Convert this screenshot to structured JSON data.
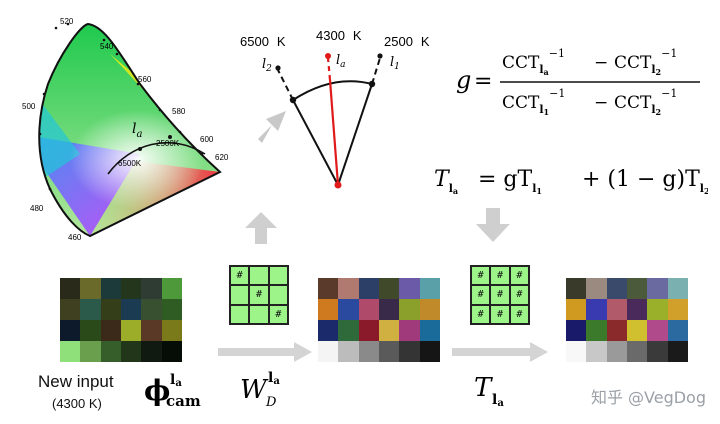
{
  "chromaticity": {
    "wavelength_labels": [
      "520",
      "540",
      "560",
      "580",
      "600",
      "620",
      "500",
      "480",
      "460"
    ],
    "locus_label": "l",
    "locus_label_sub": "a",
    "temp_label_left": "6500K",
    "temp_label_right": "2500K"
  },
  "fan": {
    "left_temp": "6500",
    "left_unit": "K",
    "mid_temp": "4300",
    "mid_unit": "K",
    "right_temp": "2500",
    "right_unit": "K",
    "left_label": "l",
    "left_label_sub": "2",
    "mid_label": "l",
    "mid_label_sub": "a",
    "right_label": "l",
    "right_label_sub": "1"
  },
  "equations": {
    "g_lhs": "g",
    "cct_num_a": "CCT",
    "cct_num_a_sub": "l",
    "cct_num_a_subsub": "a",
    "cct_num_b": "CCT",
    "cct_num_b_sub": "l",
    "cct_num_b_subsub": "2",
    "cct_den_a": "CCT",
    "cct_den_a_sub": "l",
    "cct_den_a_subsub": "1",
    "cct_den_b": "CCT",
    "cct_den_b_sub": "l",
    "cct_den_b_subsub": "2",
    "exponent": "−1",
    "minus": "−",
    "t_equation": "T",
    "t_rhs": "= gT",
    "t_plus": "+ (1 − g)T"
  },
  "bottom": {
    "new_input": "New input",
    "new_input_temp": "(4300 K)",
    "phi": "ϕ",
    "phi_sub": "cam",
    "phi_sup": "l",
    "phi_sup_sub": "a",
    "w_label": "W",
    "w_sub": "D",
    "w_sup": "l",
    "w_sup_sub": "a",
    "t_label": "T",
    "t_sub": "l",
    "t_sub_sub": "a"
  },
  "weight_grid_1": [
    "#",
    "",
    "",
    "",
    "#",
    "",
    "",
    "",
    "#"
  ],
  "weight_grid_2": [
    "#",
    "#",
    "#",
    "#",
    "#",
    "#",
    "#",
    "#",
    "#"
  ],
  "watermark": "知乎 @VegDog",
  "palettes": {
    "input": [
      [
        "#2a2a1a",
        "#6a6a2a",
        "#1c3a3a",
        "#24361c",
        "#2f3c33",
        "#4e9a3a"
      ],
      [
        "#3e4020",
        "#2b5a4b",
        "#343f1a",
        "#1a3b52",
        "#38502f",
        "#2f5c22"
      ],
      [
        "#0c1a2b",
        "#2a4a1a",
        "#3b2a1a",
        "#9cad2a",
        "#5a3a27",
        "#7a7a1a"
      ],
      [
        "#8fe07a",
        "#6aa04d",
        "#365e2a",
        "#22361a",
        "#101a10",
        "#060c06"
      ]
    ],
    "mid": [
      [
        "#5a3a2a",
        "#b07a70",
        "#2c3f66",
        "#404a2a",
        "#6a5aa8",
        "#5aa0a8"
      ],
      [
        "#d07a20",
        "#2a4aa0",
        "#b04a6a",
        "#3a2a4a",
        "#8aa02a",
        "#c08a2a"
      ],
      [
        "#1a2a6a",
        "#2f6a3a",
        "#8a1a2a",
        "#d0b040",
        "#a03a7a",
        "#1a6a9a"
      ],
      [
        "#f4f4f4",
        "#bcbcbc",
        "#8a8a8a",
        "#5a5a5a",
        "#343434",
        "#151515"
      ]
    ],
    "out": [
      [
        "#3a3a2a",
        "#9a8a80",
        "#3a4a6a",
        "#4a5a3a",
        "#6a6aa0",
        "#7ab0b0"
      ],
      [
        "#d09a20",
        "#3a3ab0",
        "#b05a6a",
        "#4a2a5a",
        "#9ab02a",
        "#d0a02a"
      ],
      [
        "#1a1a6a",
        "#3a7a2a",
        "#8a2a2a",
        "#d0c030",
        "#b04a8a",
        "#2a6aa0"
      ],
      [
        "#f8f8f8",
        "#c8c8c8",
        "#9a9a9a",
        "#6a6a6a",
        "#3a3a3a",
        "#1a1a1a"
      ]
    ]
  }
}
